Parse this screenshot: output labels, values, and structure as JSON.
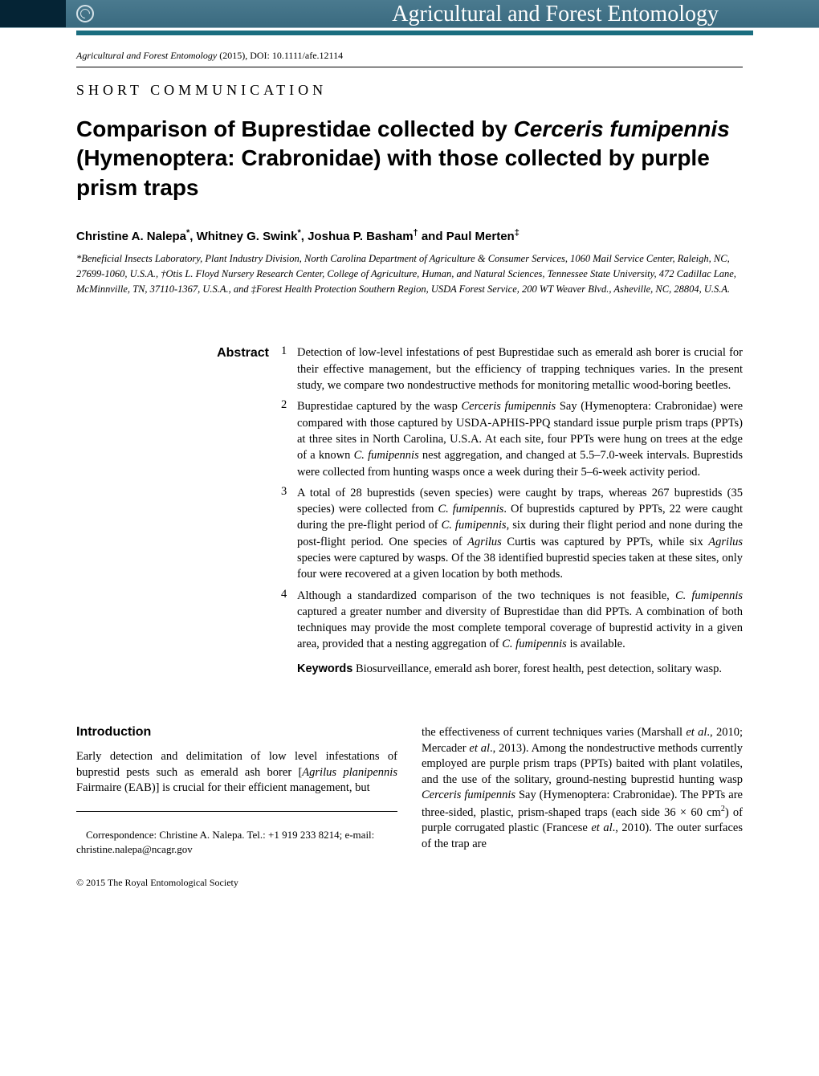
{
  "header": {
    "journal_title": "Agricultural and Forest Entomology"
  },
  "citation": {
    "journal": "Agricultural and Forest Entomology",
    "year_doi": " (2015), DOI: 10.1111/afe.12114"
  },
  "article_type": "SHORT COMMUNICATION",
  "title": {
    "part1": "Comparison of Buprestidae collected by ",
    "italic1": "Cerceris fumipennis",
    "part2": " (Hymenoptera: Crabronidae) with those collected by purple prism traps"
  },
  "authors": {
    "a1_name": "Christine A. Nalepa",
    "a1_sup": "*",
    "a2_name": "Whitney G. Swink",
    "a2_sup": "*",
    "a3_name": "Joshua P. Basham",
    "a3_sup": "†",
    "a4_name": "Paul Merten",
    "a4_sup": "‡"
  },
  "affiliations": {
    "text": "*Beneficial Insects Laboratory, Plant Industry Division, North Carolina Department of Agriculture & Consumer Services, 1060 Mail Service Center, Raleigh, NC, 27699-1060, U.S.A., †Otis L. Floyd Nursery Research Center, College of Agriculture, Human, and Natural Sciences, Tennessee State University, 472 Cadillac Lane, McMinnville, TN, 37110-1367, U.S.A., and ‡Forest Health Protection Southern Region, USDA Forest Service, 200 WT Weaver Blvd., Asheville, NC, 28804, U.S.A."
  },
  "abstract": {
    "label": "Abstract",
    "item1": "Detection of low-level infestations of pest Buprestidae such as emerald ash borer is crucial for their effective management, but the efficiency of trapping techniques varies. In the present study, we compare two nondestructive methods for monitoring metallic wood-boring beetles.",
    "item2_p1": "Buprestidae captured by the wasp ",
    "item2_i1": "Cerceris fumipennis",
    "item2_p2": " Say (Hymenoptera: Crabronidae) were compared with those captured by USDA-APHIS-PPQ standard issue purple prism traps (PPTs) at three sites in North Carolina, U.S.A. At each site, four PPTs were hung on trees at the edge of a known ",
    "item2_i2": "C. fumipennis",
    "item2_p3": " nest aggregation, and changed at 5.5–7.0-week intervals. Buprestids were collected from hunting wasps once a week during their 5–6-week activity period.",
    "item3_p1": "A total of 28 buprestids (seven species) were caught by traps, whereas 267 buprestids (35 species) were collected from ",
    "item3_i1": "C. fumipennis",
    "item3_p2": ". Of buprestids captured by PPTs, 22 were caught during the pre-flight period of ",
    "item3_i2": "C. fumipennis",
    "item3_p3": ", six during their flight period and none during the post-flight period. One species of ",
    "item3_i3": "Agrilus",
    "item3_p4": " Curtis was captured by PPTs, while six ",
    "item3_i4": "Agrilus",
    "item3_p5": " species were captured by wasps. Of the 38 identified buprestid species taken at these sites, only four were recovered at a given location by both methods.",
    "item4_p1": "Although a standardized comparison of the two techniques is not feasible, ",
    "item4_i1": "C. fumipennis",
    "item4_p2": " captured a greater number and diversity of Buprestidae than did PPTs. A combination of both techniques may provide the most complete temporal coverage of buprestid activity in a given area, provided that a nesting aggregation of ",
    "item4_i2": "C. fumipennis",
    "item4_p3": " is available.",
    "keywords_label": "Keywords",
    "keywords_text": "  Biosurveillance, emerald ash borer, forest health, pest detection, solitary wasp."
  },
  "intro": {
    "heading": "Introduction",
    "col1_p1": "Early detection and delimitation of low level infestations of buprestid pests such as emerald ash borer [",
    "col1_i1": "Agrilus planipennis",
    "col1_p2": " Fairmaire (EAB)] is crucial for their efficient management, but",
    "correspondence": "Correspondence: Christine A. Nalepa. Tel.: +1 919 233 8214; e-mail: christine.nalepa@ncagr.gov",
    "col2_p1": "the effectiveness of current techniques varies (Marshall ",
    "col2_i1": "et al",
    "col2_p2": "., 2010; Mercader ",
    "col2_i2": "et al",
    "col2_p3": "., 2013). Among the nondestructive methods currently employed are purple prism traps (PPTs) baited with plant volatiles, and the use of the solitary, ground-nesting buprestid hunting wasp ",
    "col2_i3": "Cerceris fumipennis",
    "col2_p4": " Say (Hymenoptera: Crabronidae). The PPTs are three-sided, plastic, prism-shaped traps (each side 36 × 60 cm",
    "col2_sup": "2",
    "col2_p5": ") of purple corrugated plastic (Francese ",
    "col2_i4": "et al",
    "col2_p6": "., 2010). The outer surfaces of the trap are"
  },
  "copyright": "© 2015 The Royal Entomological Society"
}
